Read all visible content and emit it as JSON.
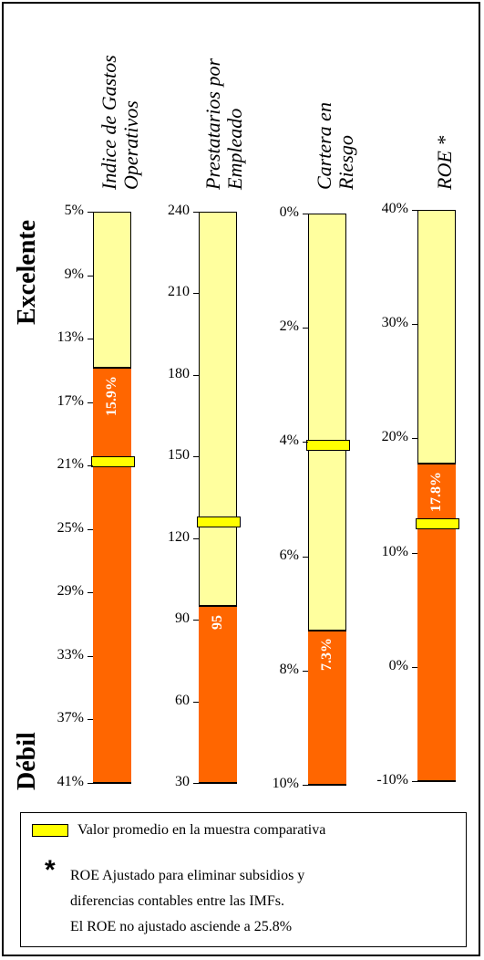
{
  "side_labels": {
    "top": "Excelente",
    "bottom": "Débil"
  },
  "legend": {
    "swatch_label": "Valor promedio en la muestra  comparativa",
    "star": "*",
    "note_lines": [
      "ROE Ajustado para eliminar subsidios y",
      "diferencias contables entre las IMFs.",
      "El ROE no ajustado asciende a 25.8%"
    ]
  },
  "colors": {
    "value_fill": "#ff6600",
    "range_fill": "#ffff9e",
    "average_marker": "#ffff00"
  },
  "chart_data": [
    {
      "type": "bar",
      "title_lines": [
        "Indice de Gastos",
        "Operativos"
      ],
      "ticks": [
        "5%",
        "9%",
        "13%",
        "17%",
        "21%",
        "25%",
        "29%",
        "33%",
        "37%",
        "41%"
      ],
      "scale": {
        "best": 5,
        "worst": 45
      },
      "value": 15.9,
      "value_label": "15.9%",
      "average": 22.5
    },
    {
      "type": "bar",
      "title_lines": [
        "Prestatarios por",
        "Empleado"
      ],
      "ticks": [
        "240",
        "210",
        "180",
        "150",
        "120",
        "90",
        "60",
        "30"
      ],
      "scale": {
        "best": 240,
        "worst": 30
      },
      "value": 95,
      "value_label": "95",
      "average": 126
    },
    {
      "type": "bar",
      "title_lines": [
        "Cartera en",
        "Riesgo"
      ],
      "ticks": [
        "0%",
        "2%",
        "4%",
        "6%",
        "8%",
        "10%"
      ],
      "scale": {
        "best": 0,
        "worst": 10
      },
      "value": 7.3,
      "value_label": "7.3%",
      "average": 4.05
    },
    {
      "type": "bar",
      "title_lines": [
        "ROE *"
      ],
      "ticks": [
        "40%",
        "30%",
        "20%",
        "10%",
        "0%",
        "-10%"
      ],
      "scale": {
        "best": 40,
        "worst": -10
      },
      "value": 17.8,
      "value_label": "17.8%",
      "average": 12.5
    }
  ]
}
